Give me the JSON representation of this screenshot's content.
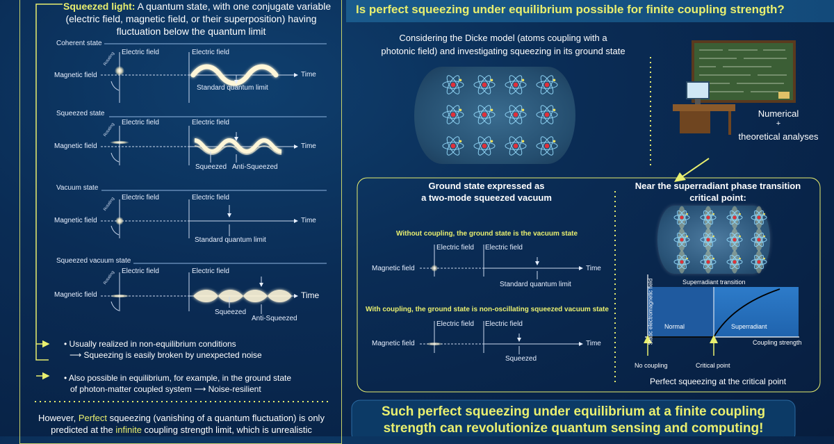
{
  "left": {
    "intro_bold": "Squeezed light:",
    "intro_line1_rest": " A quantum state, with one conjugate variable",
    "intro_line2": "(electric field, magnetic field, or their superposition) having",
    "intro_line3": "fluctuation below the quantum limit",
    "states": [
      {
        "title": "Coherent state",
        "electric": "Electric field",
        "electric2": "Electric field",
        "magnetic": "Magnetic field",
        "rotating": "Rotating",
        "time": "Time",
        "note1": "Standard quantum limit"
      },
      {
        "title": "Squeezed state",
        "electric": "Electric field",
        "electric2": "Electric field",
        "magnetic": "Magnetic field",
        "rotating": "Rotating",
        "time": "Time",
        "note1": "Squeezed",
        "note2": "Anti-Squeezed"
      },
      {
        "title": "Vacuum state",
        "electric": "Electric field",
        "electric2": "Electric field",
        "magnetic": "Magnetic field",
        "rotating": "Rotating",
        "time": "Time",
        "note1": "Standard quantum limit"
      },
      {
        "title": "Squeezed vacuum state",
        "electric": "Electric field",
        "electric2": "Electric field",
        "magnetic": "Magnetic field",
        "rotating": "Rotating",
        "time": "Time",
        "note1": "Squeezed",
        "note2": "Anti-Squeezed"
      }
    ],
    "bullet1_line1": "Usually realized in non-equilibrium conditions",
    "bullet1_line2": "Squeezing is easily broken by unexpected noise",
    "bullet2_line1": "Also possible in equilibrium, for example, in the ground state",
    "bullet2_line2": "of photon-matter coupled system",
    "bullet2_line3": "Noise-resilient",
    "footer_line1_pre": "However, ",
    "footer_line1_hl": "Perfect",
    "footer_line1_post": " squeezing (vanishing of a quantum fluctuation) is only",
    "footer_line2_pre": "predicted at the ",
    "footer_line2_hl": "infinite",
    "footer_line2_post": " coupling strength limit, which is unrealistic"
  },
  "right": {
    "question": "Is perfect squeezing under equilibrium possible for finite coupling strength?",
    "dicke_line1": "Considering the Dicke model (atoms coupling with a",
    "dicke_line2": "photonic field) and investigating squeezing in its ground state",
    "analysis_line1": "Numerical",
    "analysis_plus": "+",
    "analysis_line2": "theoretical analyses",
    "ground_title1": "Ground state expressed as",
    "ground_title2": "a two-mode squeezed vacuum",
    "without_coupling": "Without coupling, the ground state is the vacuum state",
    "with_coupling": "With coupling, the ground state is non-oscillating squeezed vacuum state",
    "electric": "Electric field",
    "magnetic": "Magnetic field",
    "time": "Time",
    "sql": "Standard quantum limit",
    "squeezed": "Squeezed",
    "near_title1": "Near the superradiant phase transition",
    "near_title2": "critical point:",
    "phase": {
      "ylabel": "Static electromagnetic field",
      "xlabel": "Coupling strength",
      "transition": "Superradiant transition",
      "normal": "Normal",
      "superradiant": "Superradiant",
      "no_coupling": "No coupling",
      "critical": "Critical point"
    },
    "perfect_caption": "Perfect squeezing at the critical point",
    "conclusion_line1": "Such perfect squeezing under equilibrium at a finite coupling",
    "conclusion_line2": "strength can revolutionize quantum sensing and computing!"
  },
  "colors": {
    "accent": "#e9ef6f",
    "background": "#0a2c55",
    "glow": "#fff6d8"
  }
}
